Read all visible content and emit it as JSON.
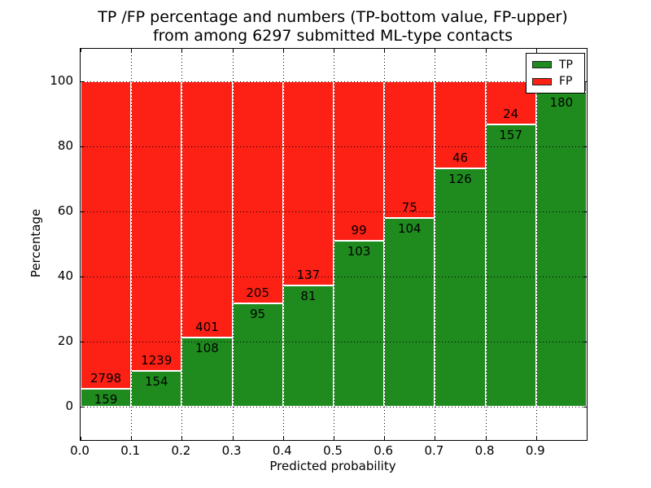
{
  "title": {
    "line1": "TP /FP percentage and numbers (TP-bottom value, FP-upper)",
    "line2": "from among 6297 submitted ML-type contacts"
  },
  "axes": {
    "xlabel": "Predicted probability",
    "ylabel": "Percentage",
    "xtick_labels": [
      "0.0",
      "0.1",
      "0.2",
      "0.3",
      "0.4",
      "0.5",
      "0.6",
      "0.7",
      "0.8",
      "0.9"
    ],
    "ytick_labels": [
      "0",
      "20",
      "40",
      "60",
      "80",
      "100"
    ]
  },
  "legend": {
    "items": [
      {
        "label": "TP",
        "color": "#1f8b1f"
      },
      {
        "label": "FP",
        "color": "#fd2015"
      }
    ],
    "position": "upper right"
  },
  "colors": {
    "tp": "#1f8b1f",
    "fp": "#fd2015",
    "grid": "#000000",
    "background": "#ffffff"
  },
  "chart_data": {
    "type": "bar",
    "stacked": true,
    "normalized": "each bin stacked to 100%",
    "title": "TP /FP percentage and numbers (TP-bottom value, FP-upper) from among 6297 submitted ML-type contacts",
    "xlabel": "Predicted probability",
    "ylabel": "Percentage",
    "xlim": [
      0.0,
      1.0
    ],
    "ylim": [
      -10,
      110
    ],
    "xticks": [
      0.0,
      0.1,
      0.2,
      0.3,
      0.4,
      0.5,
      0.6,
      0.7,
      0.8,
      0.9
    ],
    "yticks": [
      0,
      20,
      40,
      60,
      80,
      100
    ],
    "grid": "dotted, drawn above bars",
    "bins": [
      "0.0-0.1",
      "0.1-0.2",
      "0.2-0.3",
      "0.3-0.4",
      "0.4-0.5",
      "0.5-0.6",
      "0.6-0.7",
      "0.7-0.8",
      "0.8-0.9",
      "0.9-1.0"
    ],
    "series": [
      {
        "name": "TP",
        "color": "#1f8b1f",
        "counts": [
          159,
          154,
          108,
          95,
          81,
          103,
          104,
          126,
          157,
          180
        ]
      },
      {
        "name": "FP",
        "color": "#fd2015",
        "counts": [
          2798,
          1239,
          401,
          205,
          137,
          99,
          75,
          46,
          24,
          null
        ]
      }
    ],
    "tp_percent": [
      5.4,
      11.1,
      21.2,
      31.7,
      37.2,
      51.0,
      58.1,
      73.3,
      86.7,
      96.8
    ],
    "total_contacts": 6297,
    "note_visible_only": "FP count label of last bin is hidden behind the legend in the image"
  }
}
